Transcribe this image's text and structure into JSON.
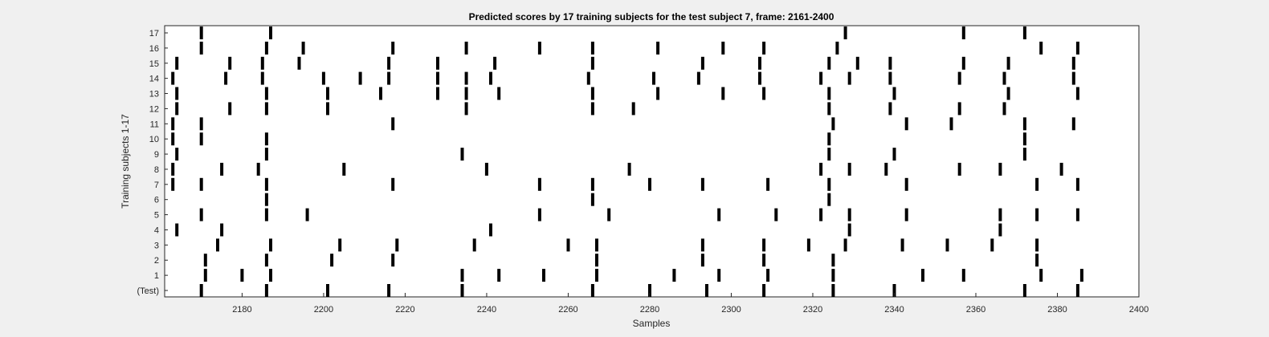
{
  "chart_data": {
    "type": "raster",
    "title": "Predicted scores by 17 training subjects for the test subject 7, frame: 2161-2400",
    "xlabel": "Samples",
    "ylabel": "Training subjects 1-17",
    "xlim": [
      2161,
      2400
    ],
    "x_ticks": [
      2180,
      2200,
      2220,
      2240,
      2260,
      2280,
      2300,
      2320,
      2340,
      2360,
      2380,
      2400
    ],
    "y_tick_labels": [
      "(Test)",
      "1",
      "2",
      "3",
      "4",
      "5",
      "6",
      "7",
      "8",
      "9",
      "10",
      "11",
      "12",
      "13",
      "14",
      "15",
      "16",
      "17"
    ],
    "grid": false,
    "legend": "none",
    "mark_color": "#000000",
    "rows": [
      {
        "label": "(Test)",
        "events": [
          2170,
          2186,
          2201,
          2216,
          2234,
          2266,
          2280,
          2294,
          2308,
          2325,
          2340,
          2372,
          2385
        ]
      },
      {
        "label": "1",
        "events": [
          2171,
          2180,
          2187,
          2234,
          2243,
          2254,
          2267,
          2286,
          2297,
          2309,
          2325,
          2347,
          2357,
          2376,
          2386
        ]
      },
      {
        "label": "2",
        "events": [
          2171,
          2186,
          2202,
          2217,
          2267,
          2293,
          2308,
          2325,
          2375
        ]
      },
      {
        "label": "3",
        "events": [
          2174,
          2187,
          2204,
          2218,
          2237,
          2260,
          2267,
          2293,
          2308,
          2319,
          2328,
          2342,
          2353,
          2364,
          2375
        ]
      },
      {
        "label": "4",
        "events": [
          2164,
          2175,
          2241,
          2329,
          2366
        ]
      },
      {
        "label": "5",
        "events": [
          2170,
          2186,
          2196,
          2253,
          2270,
          2297,
          2311,
          2322,
          2329,
          2343,
          2366,
          2375,
          2385
        ]
      },
      {
        "label": "6",
        "events": [
          2186,
          2266,
          2324
        ]
      },
      {
        "label": "7",
        "events": [
          2163,
          2170,
          2186,
          2217,
          2253,
          2266,
          2280,
          2293,
          2309,
          2324,
          2343,
          2375,
          2385
        ]
      },
      {
        "label": "8",
        "events": [
          2163,
          2175,
          2184,
          2205,
          2240,
          2275,
          2322,
          2329,
          2338,
          2356,
          2366,
          2381
        ]
      },
      {
        "label": "9",
        "events": [
          2164,
          2186,
          2234,
          2324,
          2340,
          2372
        ]
      },
      {
        "label": "10",
        "events": [
          2163,
          2170,
          2186,
          2324,
          2372
        ]
      },
      {
        "label": "11",
        "events": [
          2163,
          2170,
          2217,
          2325,
          2343,
          2354,
          2372,
          2384
        ]
      },
      {
        "label": "12",
        "events": [
          2164,
          2177,
          2186,
          2201,
          2235,
          2266,
          2276,
          2324,
          2339,
          2356,
          2367
        ]
      },
      {
        "label": "13",
        "events": [
          2164,
          2186,
          2201,
          2214,
          2228,
          2235,
          2243,
          2266,
          2282,
          2298,
          2308,
          2324,
          2340,
          2368,
          2385
        ]
      },
      {
        "label": "14",
        "events": [
          2163,
          2176,
          2185,
          2200,
          2209,
          2216,
          2228,
          2235,
          2241,
          2265,
          2281,
          2292,
          2307,
          2322,
          2329,
          2339,
          2356,
          2367,
          2384
        ]
      },
      {
        "label": "15",
        "events": [
          2164,
          2177,
          2185,
          2194,
          2216,
          2228,
          2242,
          2266,
          2293,
          2307,
          2324,
          2331,
          2339,
          2357,
          2368,
          2384
        ]
      },
      {
        "label": "16",
        "events": [
          2170,
          2186,
          2195,
          2217,
          2235,
          2253,
          2266,
          2282,
          2298,
          2308,
          2326,
          2376,
          2385
        ]
      },
      {
        "label": "17",
        "events": [
          2170,
          2187,
          2328,
          2357,
          2372
        ]
      }
    ]
  }
}
